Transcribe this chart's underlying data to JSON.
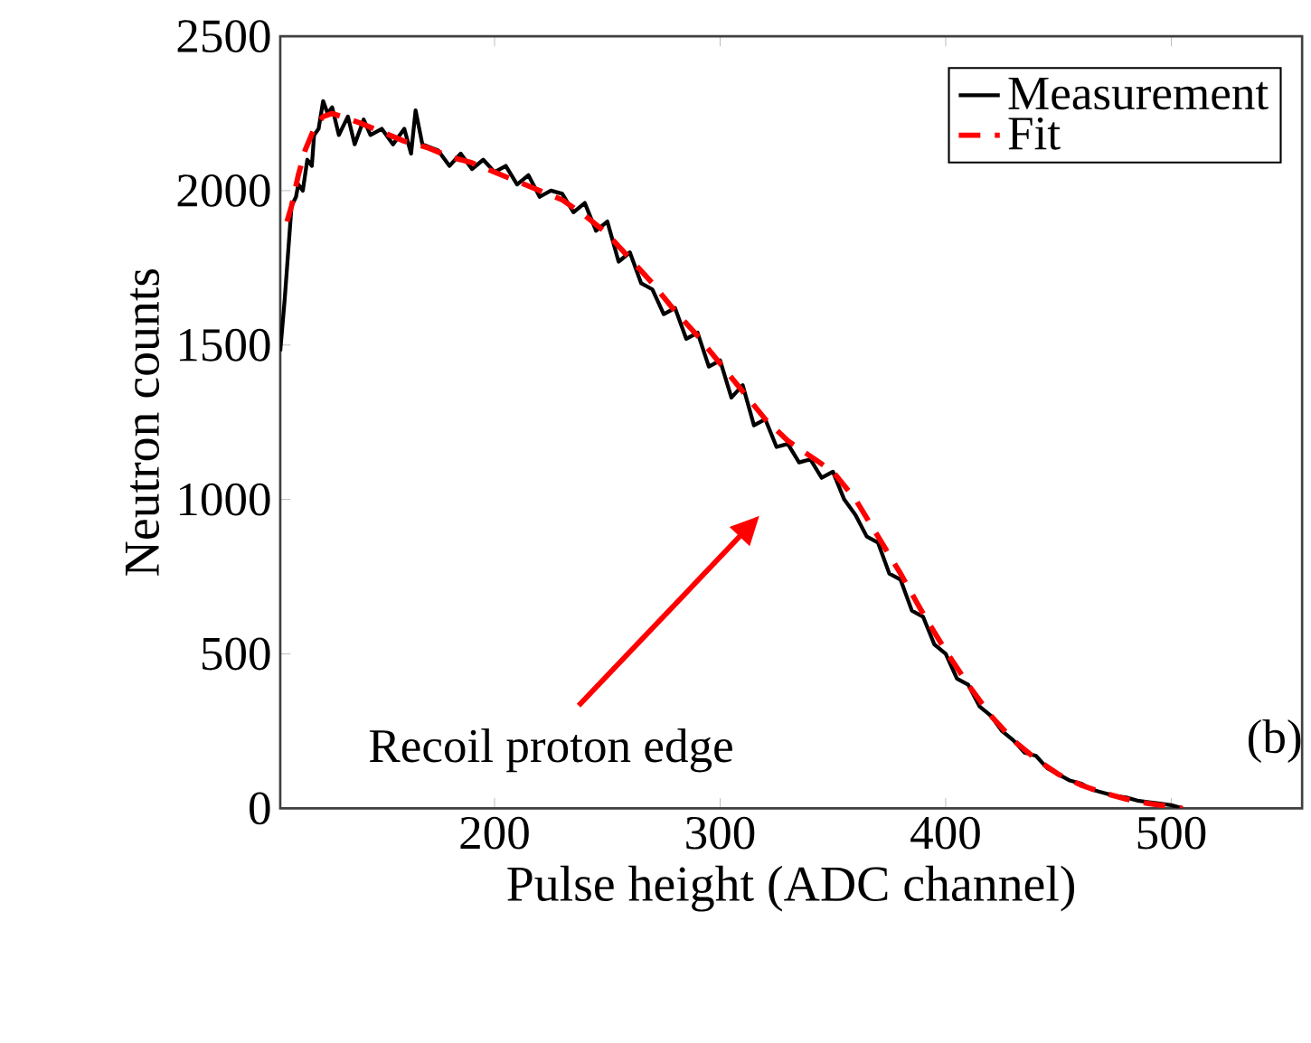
{
  "chart_data": {
    "type": "line",
    "xlabel": "Pulse height (ADC channel)",
    "ylabel": "Neutron counts",
    "xlim": [
      105,
      558
    ],
    "ylim": [
      0,
      2500
    ],
    "xticks": [
      200,
      300,
      400,
      500
    ],
    "yticks": [
      0,
      500,
      1000,
      1500,
      2000,
      2500
    ],
    "legend": "top right",
    "grid": false,
    "series": [
      {
        "name": "Measurement",
        "color": "#000000",
        "line_style": "solid",
        "x": [
          105,
          107,
          108,
          110,
          112,
          113,
          115,
          117,
          119,
          120,
          122,
          124,
          126,
          128,
          131,
          135,
          138,
          142,
          145,
          150,
          155,
          160,
          163,
          165,
          168,
          175,
          180,
          185,
          190,
          195,
          200,
          205,
          210,
          215,
          220,
          225,
          230,
          235,
          240,
          245,
          250,
          255,
          260,
          265,
          270,
          275,
          280,
          285,
          290,
          295,
          300,
          305,
          310,
          315,
          320,
          325,
          330,
          335,
          340,
          345,
          350,
          355,
          360,
          365,
          370,
          375,
          380,
          385,
          390,
          395,
          400,
          405,
          410,
          415,
          420,
          425,
          430,
          435,
          440,
          445,
          450,
          455,
          460,
          465,
          470,
          475,
          480,
          485,
          490,
          495,
          500,
          505
        ],
        "values": [
          1480,
          1650,
          1750,
          1950,
          1980,
          2020,
          2000,
          2100,
          2080,
          2180,
          2200,
          2290,
          2250,
          2270,
          2180,
          2240,
          2150,
          2230,
          2180,
          2200,
          2150,
          2200,
          2120,
          2260,
          2150,
          2130,
          2080,
          2120,
          2070,
          2100,
          2060,
          2080,
          2020,
          2050,
          1980,
          2000,
          1990,
          1930,
          1960,
          1870,
          1900,
          1770,
          1800,
          1700,
          1680,
          1600,
          1620,
          1520,
          1540,
          1430,
          1450,
          1330,
          1370,
          1240,
          1260,
          1170,
          1180,
          1120,
          1130,
          1070,
          1090,
          1000,
          950,
          880,
          860,
          760,
          740,
          640,
          620,
          530,
          500,
          420,
          400,
          330,
          300,
          250,
          220,
          180,
          170,
          130,
          110,
          90,
          80,
          60,
          50,
          40,
          35,
          25,
          20,
          15,
          10,
          0
        ]
      },
      {
        "name": "Fit",
        "color": "#ff0000",
        "line_style": "dashed",
        "x": [
          108,
          110,
          113,
          116,
          120,
          124,
          128,
          132,
          140,
          150,
          160,
          170,
          180,
          190,
          200,
          210,
          220,
          230,
          240,
          250,
          260,
          270,
          280,
          290,
          300,
          310,
          320,
          330,
          340,
          350,
          360,
          370,
          380,
          390,
          400,
          410,
          420,
          430,
          440,
          450,
          460,
          470,
          480,
          490,
          500,
          505
        ],
        "values": [
          1900,
          1950,
          2050,
          2130,
          2200,
          2240,
          2250,
          2240,
          2220,
          2190,
          2160,
          2140,
          2110,
          2090,
          2060,
          2030,
          2000,
          1970,
          1920,
          1860,
          1780,
          1700,
          1610,
          1530,
          1440,
          1350,
          1260,
          1190,
          1140,
          1090,
          1000,
          880,
          760,
          630,
          510,
          400,
          300,
          220,
          160,
          110,
          75,
          50,
          30,
          15,
          5,
          0
        ]
      }
    ],
    "annotations": [
      "Recoil proton edge",
      "(b)"
    ]
  }
}
